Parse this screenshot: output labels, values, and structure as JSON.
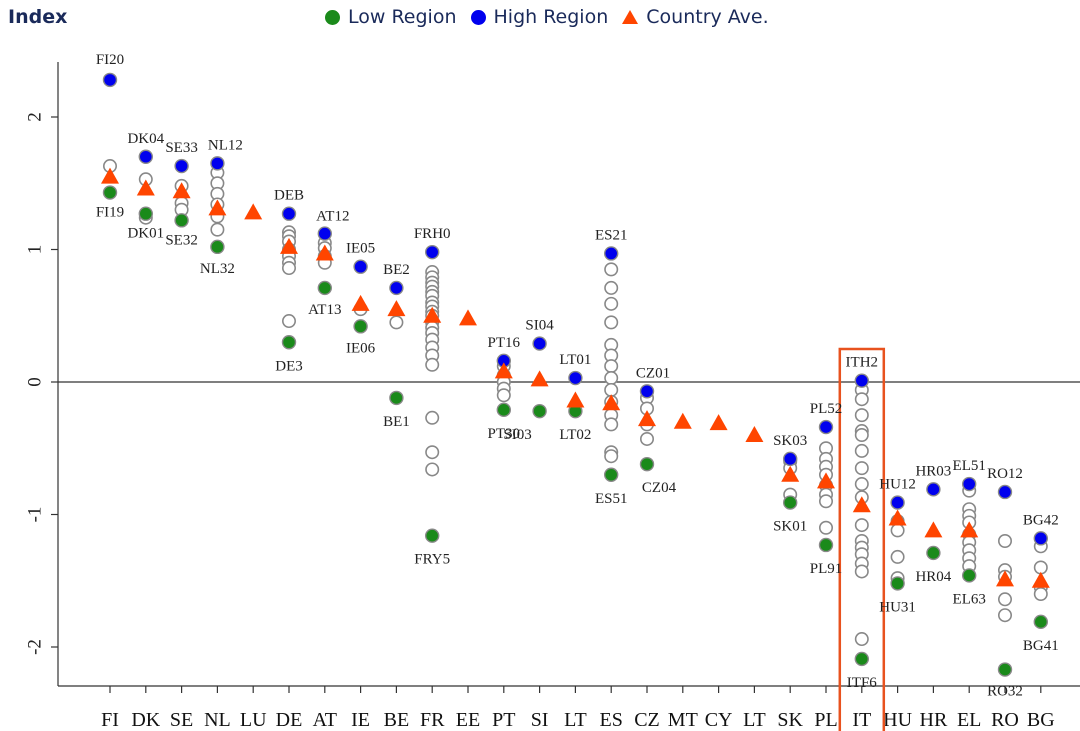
{
  "header": {
    "title": "Index"
  },
  "legend": {
    "items": [
      {
        "label": "Low Region",
        "color": "#1a8a1a",
        "shape": "circle"
      },
      {
        "label": "High Region",
        "color": "#0000ee",
        "shape": "circle"
      },
      {
        "label": "Country Ave.",
        "color": "#ff4500",
        "shape": "triangle"
      }
    ]
  },
  "chart_data": {
    "type": "scatter",
    "title": "Index",
    "xlabel": "",
    "ylabel": "",
    "ylim": [
      -2.3,
      2.4
    ],
    "yticks": [
      -2,
      -1,
      0,
      1,
      2
    ],
    "grid": false,
    "legend_position": "top",
    "reference_line": 0,
    "colors": {
      "low": "#1a8a1a",
      "high": "#0000ee",
      "average": "#ff4500",
      "other": "#888888",
      "highlight_box": "#e8521e"
    },
    "highlight_category": "IT",
    "categories": [
      "FI",
      "DK",
      "SE",
      "NL",
      "LU",
      "DE",
      "AT",
      "IE",
      "BE",
      "FR",
      "EE",
      "PT",
      "SI",
      "LT",
      "ES",
      "CZ",
      "MT",
      "CY",
      "LT",
      "SK",
      "PL",
      "IT",
      "HU",
      "HR",
      "EL",
      "RO",
      "BG"
    ],
    "series": [
      {
        "name": "Low Region",
        "values": [
          1.43,
          1.27,
          1.22,
          1.02,
          null,
          0.3,
          0.71,
          0.42,
          -0.12,
          -1.16,
          null,
          -0.21,
          -0.22,
          -0.22,
          -0.7,
          -0.62,
          null,
          null,
          null,
          -0.91,
          -1.23,
          -2.09,
          -1.52,
          -1.29,
          -1.46,
          -2.17,
          -1.81
        ],
        "point_labels": [
          "FI19",
          "DK01",
          "SE32",
          "NL32",
          "",
          "DE3",
          "AT13",
          "IE06",
          "BE1",
          "FRY5",
          "",
          "PT30",
          "SI03",
          "LT02",
          "ES51",
          "CZ04",
          "",
          "",
          "",
          "SK01",
          "PL91",
          "ITF6",
          "HU31",
          "HR04",
          "EL63",
          "RO32",
          "BG41"
        ]
      },
      {
        "name": "High Region",
        "values": [
          2.28,
          1.7,
          1.63,
          1.65,
          null,
          1.27,
          1.12,
          0.87,
          0.71,
          0.98,
          null,
          0.16,
          0.29,
          0.03,
          0.97,
          -0.07,
          null,
          null,
          null,
          -0.58,
          -0.34,
          0.01,
          -0.91,
          -0.81,
          -0.77,
          -0.83,
          -1.18
        ],
        "point_labels": [
          "FI20",
          "DK04",
          "SE33",
          "NL12",
          "",
          "DEB",
          "AT12",
          "IE05",
          "BE2",
          "FRH0",
          "",
          "PT16",
          "SI04",
          "LT01",
          "ES21",
          "CZ01",
          "",
          "",
          "",
          "SK03",
          "PL52",
          "ITH2",
          "HU12",
          "HR03",
          "EL51",
          "RO12",
          "BG42"
        ]
      },
      {
        "name": "Country Ave.",
        "values": [
          1.55,
          1.46,
          1.44,
          1.31,
          1.28,
          1.02,
          0.97,
          0.59,
          0.55,
          0.5,
          0.48,
          0.08,
          0.02,
          -0.14,
          -0.16,
          -0.28,
          -0.3,
          -0.31,
          -0.4,
          -0.7,
          -0.75,
          -0.93,
          -1.03,
          -1.12,
          -1.12,
          -1.49,
          -1.5
        ]
      }
    ],
    "other_regions": [
      [
        1.63
      ],
      [
        1.53,
        1.24
      ],
      [
        1.35,
        1.3,
        1.48
      ],
      [
        1.58,
        1.5,
        1.42,
        1.34,
        1.25,
        1.15
      ],
      [],
      [
        1.13,
        1.1,
        1.06,
        1.0,
        0.95,
        0.9,
        0.86,
        0.46
      ],
      [
        1.05,
        1.01,
        0.95,
        0.9
      ],
      [
        0.55
      ],
      [
        0.45
      ],
      [
        0.83,
        0.79,
        0.75,
        0.72,
        0.68,
        0.65,
        0.6,
        0.57,
        0.53,
        0.5,
        0.45,
        0.41,
        0.37,
        0.32,
        0.26,
        0.2,
        0.13,
        -0.27,
        -0.53,
        -0.66
      ],
      [],
      [
        0.12,
        0.05,
        0.0,
        -0.05,
        -0.1
      ],
      [],
      [],
      [
        0.85,
        0.71,
        0.59,
        0.45,
        0.28,
        0.2,
        0.12,
        0.03,
        -0.06,
        -0.15,
        -0.25,
        -0.32,
        -0.53,
        -0.56
      ],
      [
        -0.12,
        -0.2,
        -0.32,
        -0.43
      ],
      [],
      [],
      [],
      [
        -0.6,
        -0.65,
        -0.85
      ],
      [
        -0.5,
        -0.58,
        -0.64,
        -0.7,
        -0.78,
        -0.85,
        -0.9,
        -1.1
      ],
      [
        -0.06,
        -0.13,
        -0.25,
        -0.37,
        -0.4,
        -0.52,
        -0.65,
        -0.77,
        -0.87,
        -1.08,
        -1.2,
        -1.25,
        -1.3,
        -1.37,
        -1.43,
        -1.94
      ],
      [
        -1.05,
        -1.12,
        -1.32,
        -1.48
      ],
      [],
      [
        -0.82,
        -0.96,
        -1.01,
        -1.06,
        -1.15,
        -1.21,
        -1.27,
        -1.33,
        -1.39
      ],
      [
        -1.2,
        -1.42,
        -1.47,
        -1.64,
        -1.76
      ],
      [
        -1.24,
        -1.4,
        -1.55,
        -1.6
      ]
    ]
  }
}
